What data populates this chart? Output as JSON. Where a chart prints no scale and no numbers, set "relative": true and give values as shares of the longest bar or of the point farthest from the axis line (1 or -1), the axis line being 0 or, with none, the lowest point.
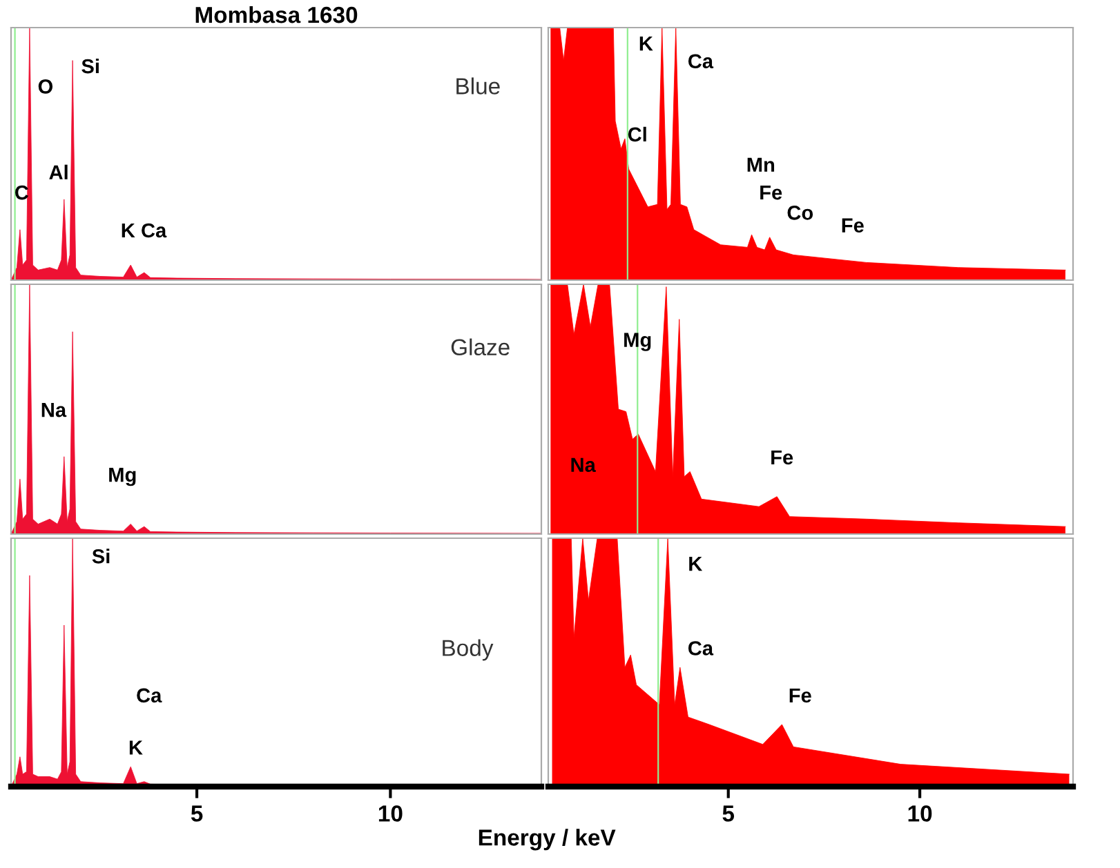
{
  "chart_data": [
    {
      "type": "area",
      "relative": true,
      "title": "Mombasa 1630",
      "color": "#ee1133",
      "xlim": [
        0.2,
        13.9
      ],
      "tick_labels": false,
      "grid": false,
      "x": [
        0.2,
        0.35,
        0.43,
        0.5,
        0.6,
        0.68,
        0.76,
        0.9,
        1.2,
        1.4,
        1.5,
        1.57,
        1.65,
        1.72,
        1.79,
        1.87,
        2.0,
        2.5,
        3.1,
        3.29,
        3.45,
        3.64,
        3.8,
        4.5,
        6.0,
        8.0,
        10.0,
        13.9
      ],
      "values": [
        0.0,
        0.05,
        0.2,
        0.06,
        0.08,
        1.0,
        0.06,
        0.04,
        0.05,
        0.04,
        0.08,
        0.32,
        0.05,
        0.1,
        0.87,
        0.05,
        0.02,
        0.015,
        0.012,
        0.06,
        0.012,
        0.03,
        0.01,
        0.008,
        0.006,
        0.005,
        0.004,
        0.003
      ],
      "ref_lines": [
        {
          "axis": "x",
          "value": 0.3,
          "color": "#90ee90"
        }
      ],
      "annotations": [
        "Blue",
        "C",
        "O",
        "Si",
        "Al",
        "K Ca"
      ]
    },
    {
      "type": "area",
      "relative": true,
      "color": "#ff0000",
      "xlim": [
        0.3,
        14.0
      ],
      "tick_labels": false,
      "grid": false,
      "x": [
        0.36,
        0.6,
        0.7,
        0.8,
        1.0,
        2.0,
        2.05,
        2.2,
        2.3,
        2.4,
        2.9,
        3.15,
        3.27,
        3.4,
        3.5,
        3.63,
        3.75,
        3.92,
        4.1,
        4.8,
        5.5,
        5.61,
        5.75,
        5.95,
        6.08,
        6.25,
        6.7,
        8.6,
        11.0,
        13.8
      ],
      "values": [
        1.0,
        1.0,
        0.87,
        1.0,
        1.0,
        1.0,
        0.63,
        0.52,
        0.56,
        0.44,
        0.29,
        0.3,
        1.0,
        0.28,
        0.3,
        1.0,
        0.3,
        0.29,
        0.2,
        0.14,
        0.13,
        0.18,
        0.13,
        0.12,
        0.17,
        0.12,
        0.1,
        0.07,
        0.05,
        0.04
      ],
      "ref_lines": [
        {
          "axis": "x",
          "value": 2.37,
          "color": "#90ee90"
        }
      ],
      "annotations": [
        "K",
        "Ca",
        "Cl",
        "Mn",
        "Fe",
        "Co",
        "Fe"
      ]
    },
    {
      "type": "area",
      "relative": true,
      "color": "#ee1133",
      "xlim": [
        0.2,
        13.9
      ],
      "tick_labels": false,
      "grid": false,
      "x": [
        0.2,
        0.35,
        0.43,
        0.5,
        0.6,
        0.68,
        0.76,
        0.9,
        1.2,
        1.4,
        1.5,
        1.57,
        1.65,
        1.72,
        1.79,
        1.87,
        2.0,
        2.5,
        3.1,
        3.29,
        3.45,
        3.64,
        3.8,
        4.5,
        6.0,
        8.0,
        10.0,
        13.9
      ],
      "values": [
        0.0,
        0.05,
        0.22,
        0.06,
        0.08,
        1.0,
        0.06,
        0.04,
        0.06,
        0.04,
        0.08,
        0.31,
        0.05,
        0.1,
        0.81,
        0.05,
        0.02,
        0.015,
        0.012,
        0.04,
        0.012,
        0.03,
        0.01,
        0.008,
        0.006,
        0.005,
        0.004,
        0.003
      ],
      "ref_lines": [
        {
          "axis": "x",
          "value": 0.3,
          "color": "#90ee90"
        }
      ],
      "annotations": [
        "Glaze",
        "Na",
        "Mg"
      ]
    },
    {
      "type": "area",
      "relative": true,
      "color": "#ff0000",
      "xlim": [
        0.3,
        14.0
      ],
      "tick_labels": false,
      "grid": false,
      "x": [
        0.36,
        0.8,
        0.97,
        1.22,
        1.4,
        1.6,
        1.9,
        2.13,
        2.33,
        2.5,
        2.65,
        3.1,
        3.38,
        3.55,
        3.72,
        3.85,
        4.0,
        4.3,
        5.8,
        6.27,
        6.6,
        8.6,
        11.0,
        13.8
      ],
      "values": [
        1.0,
        1.0,
        0.8,
        1.0,
        0.83,
        1.0,
        1.0,
        0.5,
        0.49,
        0.38,
        0.4,
        0.25,
        0.99,
        0.23,
        0.86,
        0.23,
        0.25,
        0.14,
        0.11,
        0.15,
        0.07,
        0.06,
        0.045,
        0.03
      ],
      "ref_lines": [
        {
          "axis": "x",
          "value": 2.63,
          "color": "#90ee90"
        }
      ],
      "annotations": [
        "Mg",
        "Na",
        "Fe"
      ]
    },
    {
      "type": "area",
      "relative": true,
      "color": "#ee1133",
      "xlim": [
        0.2,
        13.9
      ],
      "tick_labels": "x",
      "grid": false,
      "xticks": [
        5,
        10
      ],
      "x": [
        0.2,
        0.35,
        0.43,
        0.5,
        0.6,
        0.68,
        0.76,
        0.9,
        1.2,
        1.4,
        1.5,
        1.57,
        1.65,
        1.72,
        1.79,
        1.87,
        2.0,
        2.5,
        3.1,
        3.29,
        3.45,
        3.64,
        3.8,
        4.5,
        6.0,
        8.0,
        10.0,
        13.9
      ],
      "values": [
        0.0,
        0.05,
        0.12,
        0.05,
        0.06,
        0.85,
        0.05,
        0.04,
        0.04,
        0.03,
        0.06,
        0.65,
        0.05,
        0.1,
        1.0,
        0.05,
        0.02,
        0.015,
        0.012,
        0.08,
        0.012,
        0.02,
        0.01,
        0.008,
        0.006,
        0.005,
        0.004,
        0.003
      ],
      "ref_lines": [
        {
          "axis": "x",
          "value": 0.3,
          "color": "#90ee90"
        }
      ],
      "xlabel": "Energy / keV",
      "annotations": [
        "Body",
        "Si",
        "Ca",
        "K"
      ]
    },
    {
      "type": "area",
      "relative": true,
      "color": "#ff0000",
      "xlim": [
        0.3,
        14.0
      ],
      "tick_labels": "x",
      "grid": false,
      "xticks": [
        5,
        10
      ],
      "x": [
        0.4,
        0.9,
        0.97,
        1.2,
        1.35,
        1.58,
        2.1,
        2.3,
        2.45,
        2.6,
        3.2,
        3.42,
        3.6,
        3.74,
        3.95,
        4.5,
        5.9,
        6.4,
        6.7,
        9.5,
        13.9
      ],
      "values": [
        1.0,
        1.0,
        0.6,
        1.0,
        0.75,
        1.0,
        1.0,
        0.48,
        0.53,
        0.41,
        0.33,
        1.0,
        0.33,
        0.48,
        0.28,
        0.25,
        0.17,
        0.25,
        0.16,
        0.09,
        0.05
      ],
      "ref_lines": [
        {
          "axis": "x",
          "value": 3.17,
          "color": "#90ee90"
        }
      ],
      "annotations": [
        "K",
        "Ca",
        "Fe"
      ]
    }
  ]
}
